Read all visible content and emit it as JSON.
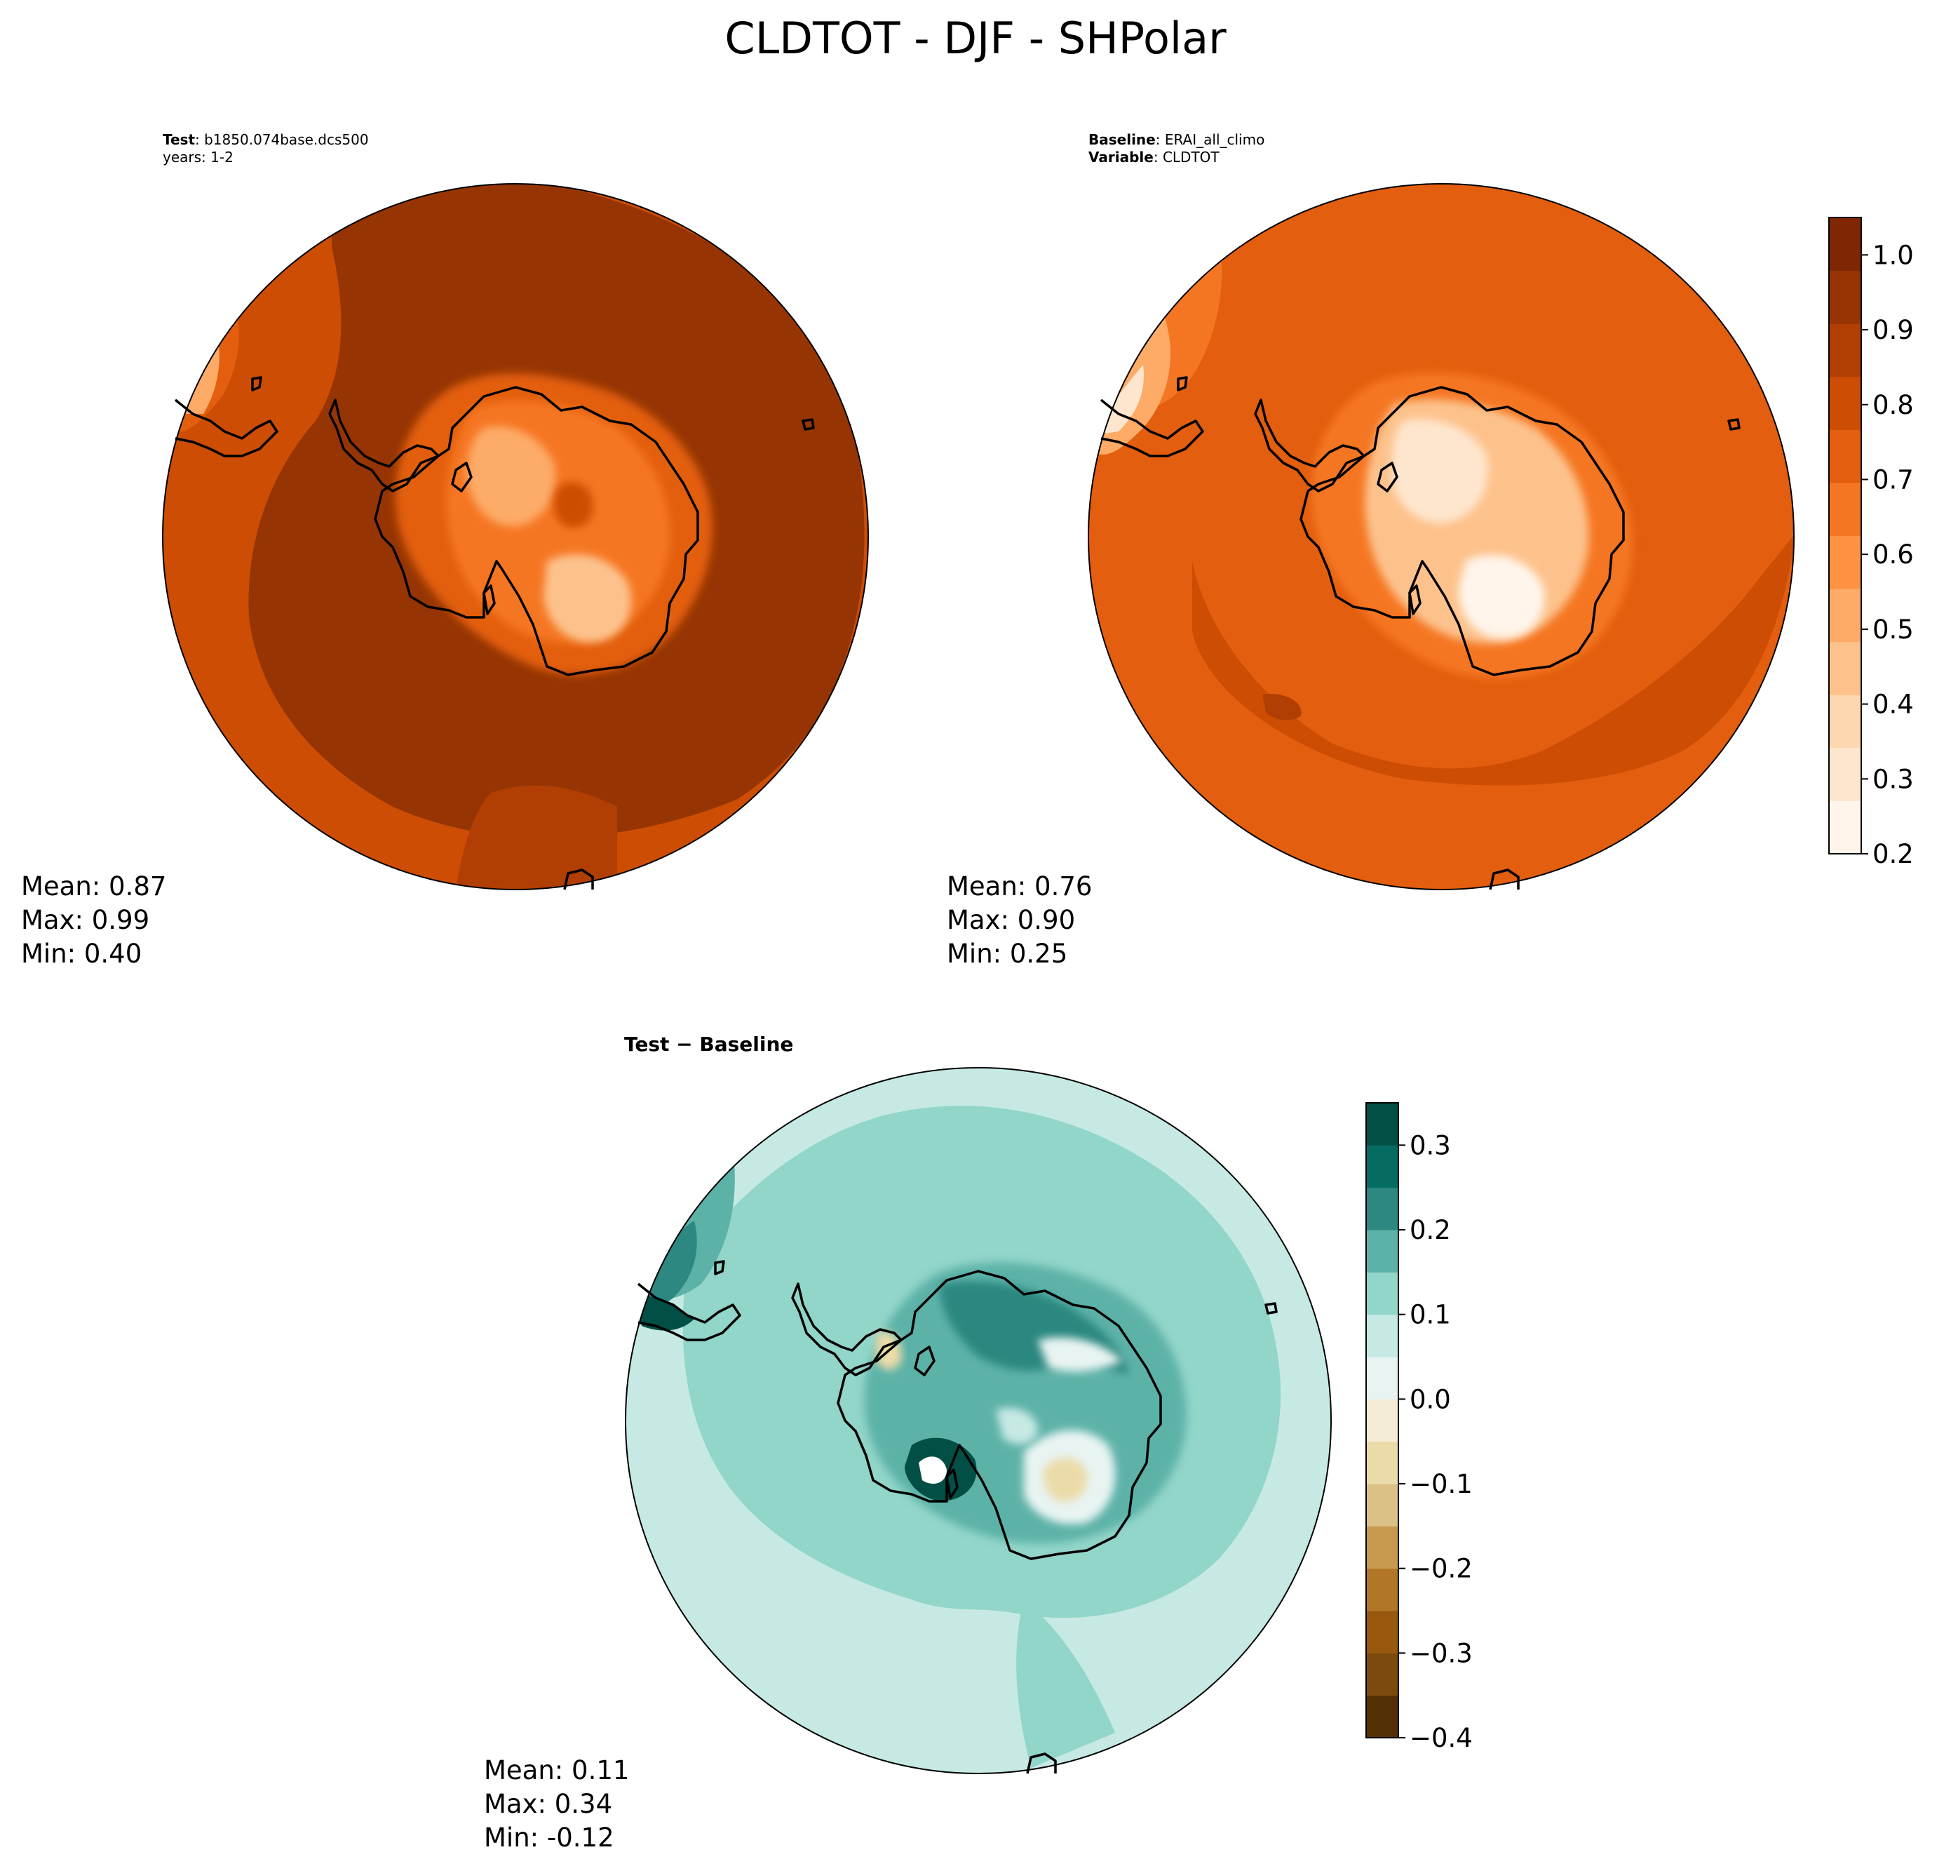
{
  "title": "CLDTOT - DJF - SHPolar",
  "colors": {
    "sequential": [
      "#fff5eb",
      "#fee6ce",
      "#fdd7af",
      "#fdc28c",
      "#fdab67",
      "#fd9243",
      "#f57622",
      "#e35e0e",
      "#cd4d04",
      "#b13f03",
      "#963503",
      "#7f2704"
    ],
    "diverging": [
      "#543005",
      "#7d4a0d",
      "#98590f",
      "#b17626",
      "#c79a50",
      "#dbc186",
      "#ebdba9",
      "#f5ecd5",
      "#e8f4f2",
      "#c6e9e4",
      "#92d5c9",
      "#5db2a8",
      "#2c8880",
      "#066c63",
      "#014f45"
    ],
    "land_edge": "#000000"
  },
  "test_panel": {
    "label_key": "Test",
    "label_value": ": b1850.074base.dcs500",
    "label_line2": "years: 1-2",
    "stats": {
      "mean": "Mean:  0.87",
      "max": "Max:  0.99",
      "min": "Min:  0.40"
    }
  },
  "baseline_panel": {
    "label_key": "Baseline",
    "label_value": ": ERAI_all_climo",
    "label_key2": "Variable",
    "label_value2": ": CLDTOT",
    "stats": {
      "mean": "Mean:  0.76",
      "max": "Max:  0.90",
      "min": "Min:  0.25"
    }
  },
  "diff_panel": {
    "title": "Test − Baseline",
    "stats": {
      "mean": "Mean:  0.11",
      "max": "Max:  0.34",
      "min": "Min: -0.12"
    }
  },
  "colorbar_main": {
    "ticks": [
      "0.2",
      "0.3",
      "0.4",
      "0.5",
      "0.6",
      "0.7",
      "0.8",
      "0.9",
      "1.0"
    ],
    "range": [
      0.2,
      1.05
    ]
  },
  "colorbar_diff": {
    "ticks": [
      "−0.4",
      "−0.3",
      "−0.2",
      "−0.1",
      "0.0",
      "0.1",
      "0.2",
      "0.3"
    ],
    "range": [
      -0.4,
      0.35
    ]
  }
}
